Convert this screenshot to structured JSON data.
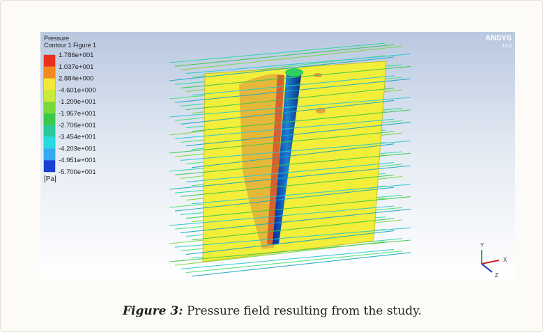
{
  "figure": {
    "legend": {
      "title": "Pressure",
      "subtitle": "Contour 1 Figure 1",
      "levels": [
        "1.786e+001",
        "1.037e+001",
        "2.884e+000",
        "-4.601e+000",
        "-1.209e+001",
        "-1.957e+001",
        "-2.706e+001",
        "-3.454e+001",
        "-4.203e+001",
        "-4.951e+001",
        "-5.700e+001"
      ],
      "unit": "[Pa]"
    },
    "logo": "ANSYS",
    "version": "15.0",
    "axes": [
      "Y",
      "X",
      "Z"
    ]
  },
  "caption": {
    "label": "Figure 3:",
    "text": "Pressure field resulting from the study."
  }
}
